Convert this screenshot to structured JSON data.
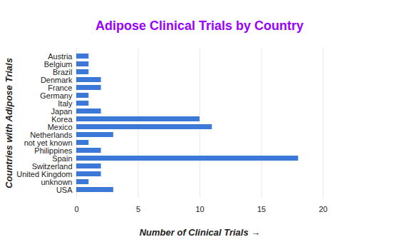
{
  "chart_data": {
    "type": "bar",
    "orientation": "horizontal",
    "title": "Adipose Clinical Trials by Country",
    "xlabel": "Number of Clinical Trials",
    "ylabel": "Countries with Adipose Trials",
    "categories": [
      "Austria",
      "Belgium",
      "Brazil",
      "Denmark",
      "France",
      "Germany",
      "Italy",
      "Japan",
      "Korea",
      "Mexico",
      "Netherlands",
      "not yet known",
      "Philippines",
      "Spain",
      "Switzerland",
      "United Kingdom",
      "unknown",
      "USA"
    ],
    "values": [
      1,
      1,
      1,
      2,
      2,
      1,
      1,
      2,
      10,
      11,
      3,
      1,
      2,
      18,
      2,
      2,
      1,
      3
    ],
    "color": "#3c78d8",
    "xlim": [
      0,
      20
    ],
    "xticks": [
      0,
      5,
      10,
      15,
      20
    ],
    "grid": true
  }
}
